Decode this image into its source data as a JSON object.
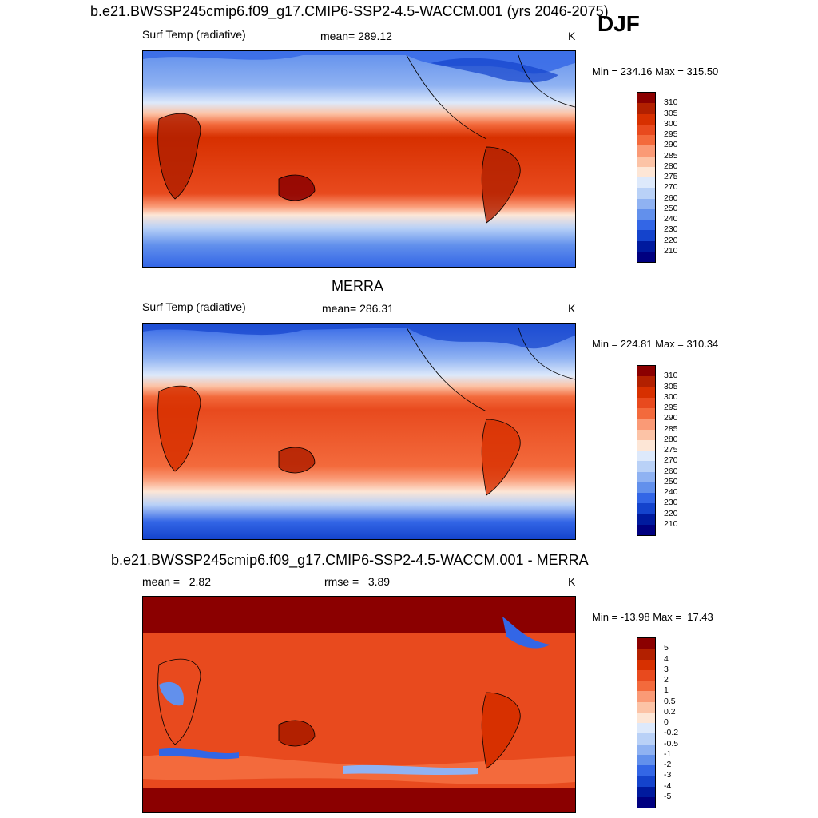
{
  "header": {
    "title": "b.e21.BWSSP245cmip6.f09_g17.CMIP6-SSP2-4.5-WACCM.001 (yrs 2046-2075)",
    "season": "DJF"
  },
  "panels": [
    {
      "title": "",
      "left_label": "Surf Temp (radiative)",
      "center_label": "mean= 289.12",
      "units": "K",
      "minmax": "Min = 234.16 Max = 315.50",
      "colorbar_labels": [
        "310",
        "305",
        "300",
        "295",
        "290",
        "285",
        "280",
        "275",
        "270",
        "260",
        "250",
        "240",
        "230",
        "220",
        "210"
      ],
      "colorbar_colors": [
        "#8b0000",
        "#b22000",
        "#d73000",
        "#e84a1e",
        "#f36a3c",
        "#fa9a76",
        "#fcc3a6",
        "#fde6d6",
        "#dde9fb",
        "#b9d1f7",
        "#8fb2f2",
        "#6290ec",
        "#3366e6",
        "#1443cc",
        "#001a9e",
        "#000080"
      ]
    },
    {
      "title": "MERRA",
      "left_label": "Surf Temp (radiative)",
      "center_label": "mean= 286.31",
      "units": "K",
      "minmax": "Min = 224.81 Max = 310.34",
      "colorbar_labels": [
        "310",
        "305",
        "300",
        "295",
        "290",
        "285",
        "280",
        "275",
        "270",
        "260",
        "250",
        "240",
        "230",
        "220",
        "210"
      ],
      "colorbar_colors": [
        "#8b0000",
        "#b22000",
        "#d73000",
        "#e84a1e",
        "#f36a3c",
        "#fa9a76",
        "#fcc3a6",
        "#fde6d6",
        "#dde9fb",
        "#b9d1f7",
        "#8fb2f2",
        "#6290ec",
        "#3366e6",
        "#1443cc",
        "#001a9e",
        "#000080"
      ]
    },
    {
      "title": "b.e21.BWSSP245cmip6.f09_g17.CMIP6-SSP2-4.5-WACCM.001 - MERRA",
      "left_label": "mean =   2.82",
      "center_label": "rmse =   3.89",
      "units": "K",
      "minmax": "Min = -13.98 Max =  17.43",
      "colorbar_labels": [
        "5",
        "4",
        "3",
        "2",
        "1",
        "0.5",
        "0.2",
        "0",
        "-0.2",
        "-0.5",
        "-1",
        "-2",
        "-3",
        "-4",
        "-5"
      ],
      "colorbar_colors": [
        "#8b0000",
        "#b22000",
        "#d73000",
        "#e84a1e",
        "#f36a3c",
        "#fa9a76",
        "#fcc3a6",
        "#fde6d6",
        "#dde9fb",
        "#b9d1f7",
        "#8fb2f2",
        "#6290ec",
        "#3366e6",
        "#1443cc",
        "#001a9e",
        "#000080"
      ]
    }
  ]
}
